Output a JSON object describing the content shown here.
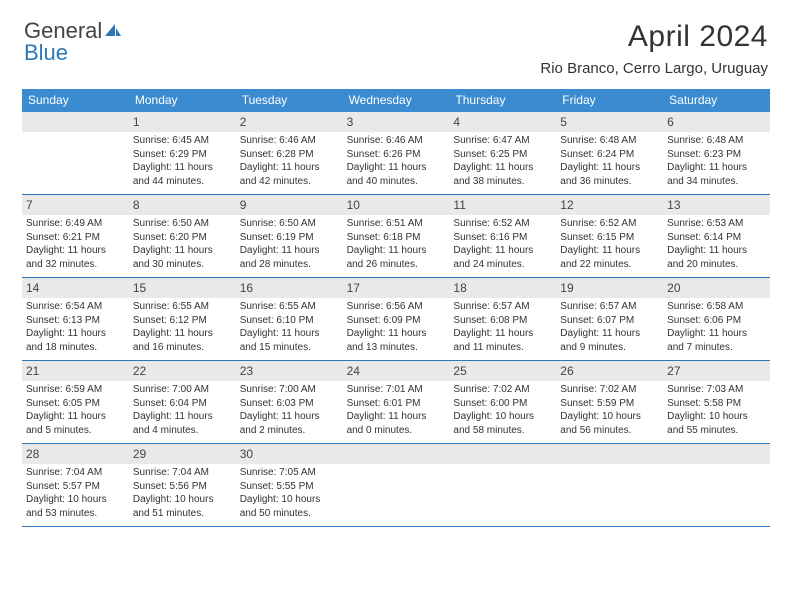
{
  "brand": {
    "part1": "General",
    "part2": "Blue"
  },
  "title": "April 2024",
  "location": "Rio Branco, Cerro Largo, Uruguay",
  "colors": {
    "header_bg": "#3a8bcf",
    "rule": "#2d77b8",
    "daynum_bg": "#e9e9e9",
    "text": "#333333",
    "brand_blue": "#2d77b8"
  },
  "weekdays": [
    "Sunday",
    "Monday",
    "Tuesday",
    "Wednesday",
    "Thursday",
    "Friday",
    "Saturday"
  ],
  "weeks": [
    [
      {
        "n": "",
        "sr": "",
        "ss": "",
        "d1": "",
        "d2": ""
      },
      {
        "n": "1",
        "sr": "Sunrise: 6:45 AM",
        "ss": "Sunset: 6:29 PM",
        "d1": "Daylight: 11 hours",
        "d2": "and 44 minutes."
      },
      {
        "n": "2",
        "sr": "Sunrise: 6:46 AM",
        "ss": "Sunset: 6:28 PM",
        "d1": "Daylight: 11 hours",
        "d2": "and 42 minutes."
      },
      {
        "n": "3",
        "sr": "Sunrise: 6:46 AM",
        "ss": "Sunset: 6:26 PM",
        "d1": "Daylight: 11 hours",
        "d2": "and 40 minutes."
      },
      {
        "n": "4",
        "sr": "Sunrise: 6:47 AM",
        "ss": "Sunset: 6:25 PM",
        "d1": "Daylight: 11 hours",
        "d2": "and 38 minutes."
      },
      {
        "n": "5",
        "sr": "Sunrise: 6:48 AM",
        "ss": "Sunset: 6:24 PM",
        "d1": "Daylight: 11 hours",
        "d2": "and 36 minutes."
      },
      {
        "n": "6",
        "sr": "Sunrise: 6:48 AM",
        "ss": "Sunset: 6:23 PM",
        "d1": "Daylight: 11 hours",
        "d2": "and 34 minutes."
      }
    ],
    [
      {
        "n": "7",
        "sr": "Sunrise: 6:49 AM",
        "ss": "Sunset: 6:21 PM",
        "d1": "Daylight: 11 hours",
        "d2": "and 32 minutes."
      },
      {
        "n": "8",
        "sr": "Sunrise: 6:50 AM",
        "ss": "Sunset: 6:20 PM",
        "d1": "Daylight: 11 hours",
        "d2": "and 30 minutes."
      },
      {
        "n": "9",
        "sr": "Sunrise: 6:50 AM",
        "ss": "Sunset: 6:19 PM",
        "d1": "Daylight: 11 hours",
        "d2": "and 28 minutes."
      },
      {
        "n": "10",
        "sr": "Sunrise: 6:51 AM",
        "ss": "Sunset: 6:18 PM",
        "d1": "Daylight: 11 hours",
        "d2": "and 26 minutes."
      },
      {
        "n": "11",
        "sr": "Sunrise: 6:52 AM",
        "ss": "Sunset: 6:16 PM",
        "d1": "Daylight: 11 hours",
        "d2": "and 24 minutes."
      },
      {
        "n": "12",
        "sr": "Sunrise: 6:52 AM",
        "ss": "Sunset: 6:15 PM",
        "d1": "Daylight: 11 hours",
        "d2": "and 22 minutes."
      },
      {
        "n": "13",
        "sr": "Sunrise: 6:53 AM",
        "ss": "Sunset: 6:14 PM",
        "d1": "Daylight: 11 hours",
        "d2": "and 20 minutes."
      }
    ],
    [
      {
        "n": "14",
        "sr": "Sunrise: 6:54 AM",
        "ss": "Sunset: 6:13 PM",
        "d1": "Daylight: 11 hours",
        "d2": "and 18 minutes."
      },
      {
        "n": "15",
        "sr": "Sunrise: 6:55 AM",
        "ss": "Sunset: 6:12 PM",
        "d1": "Daylight: 11 hours",
        "d2": "and 16 minutes."
      },
      {
        "n": "16",
        "sr": "Sunrise: 6:55 AM",
        "ss": "Sunset: 6:10 PM",
        "d1": "Daylight: 11 hours",
        "d2": "and 15 minutes."
      },
      {
        "n": "17",
        "sr": "Sunrise: 6:56 AM",
        "ss": "Sunset: 6:09 PM",
        "d1": "Daylight: 11 hours",
        "d2": "and 13 minutes."
      },
      {
        "n": "18",
        "sr": "Sunrise: 6:57 AM",
        "ss": "Sunset: 6:08 PM",
        "d1": "Daylight: 11 hours",
        "d2": "and 11 minutes."
      },
      {
        "n": "19",
        "sr": "Sunrise: 6:57 AM",
        "ss": "Sunset: 6:07 PM",
        "d1": "Daylight: 11 hours",
        "d2": "and 9 minutes."
      },
      {
        "n": "20",
        "sr": "Sunrise: 6:58 AM",
        "ss": "Sunset: 6:06 PM",
        "d1": "Daylight: 11 hours",
        "d2": "and 7 minutes."
      }
    ],
    [
      {
        "n": "21",
        "sr": "Sunrise: 6:59 AM",
        "ss": "Sunset: 6:05 PM",
        "d1": "Daylight: 11 hours",
        "d2": "and 5 minutes."
      },
      {
        "n": "22",
        "sr": "Sunrise: 7:00 AM",
        "ss": "Sunset: 6:04 PM",
        "d1": "Daylight: 11 hours",
        "d2": "and 4 minutes."
      },
      {
        "n": "23",
        "sr": "Sunrise: 7:00 AM",
        "ss": "Sunset: 6:03 PM",
        "d1": "Daylight: 11 hours",
        "d2": "and 2 minutes."
      },
      {
        "n": "24",
        "sr": "Sunrise: 7:01 AM",
        "ss": "Sunset: 6:01 PM",
        "d1": "Daylight: 11 hours",
        "d2": "and 0 minutes."
      },
      {
        "n": "25",
        "sr": "Sunrise: 7:02 AM",
        "ss": "Sunset: 6:00 PM",
        "d1": "Daylight: 10 hours",
        "d2": "and 58 minutes."
      },
      {
        "n": "26",
        "sr": "Sunrise: 7:02 AM",
        "ss": "Sunset: 5:59 PM",
        "d1": "Daylight: 10 hours",
        "d2": "and 56 minutes."
      },
      {
        "n": "27",
        "sr": "Sunrise: 7:03 AM",
        "ss": "Sunset: 5:58 PM",
        "d1": "Daylight: 10 hours",
        "d2": "and 55 minutes."
      }
    ],
    [
      {
        "n": "28",
        "sr": "Sunrise: 7:04 AM",
        "ss": "Sunset: 5:57 PM",
        "d1": "Daylight: 10 hours",
        "d2": "and 53 minutes."
      },
      {
        "n": "29",
        "sr": "Sunrise: 7:04 AM",
        "ss": "Sunset: 5:56 PM",
        "d1": "Daylight: 10 hours",
        "d2": "and 51 minutes."
      },
      {
        "n": "30",
        "sr": "Sunrise: 7:05 AM",
        "ss": "Sunset: 5:55 PM",
        "d1": "Daylight: 10 hours",
        "d2": "and 50 minutes."
      },
      {
        "n": "",
        "sr": "",
        "ss": "",
        "d1": "",
        "d2": ""
      },
      {
        "n": "",
        "sr": "",
        "ss": "",
        "d1": "",
        "d2": ""
      },
      {
        "n": "",
        "sr": "",
        "ss": "",
        "d1": "",
        "d2": ""
      },
      {
        "n": "",
        "sr": "",
        "ss": "",
        "d1": "",
        "d2": ""
      }
    ]
  ]
}
